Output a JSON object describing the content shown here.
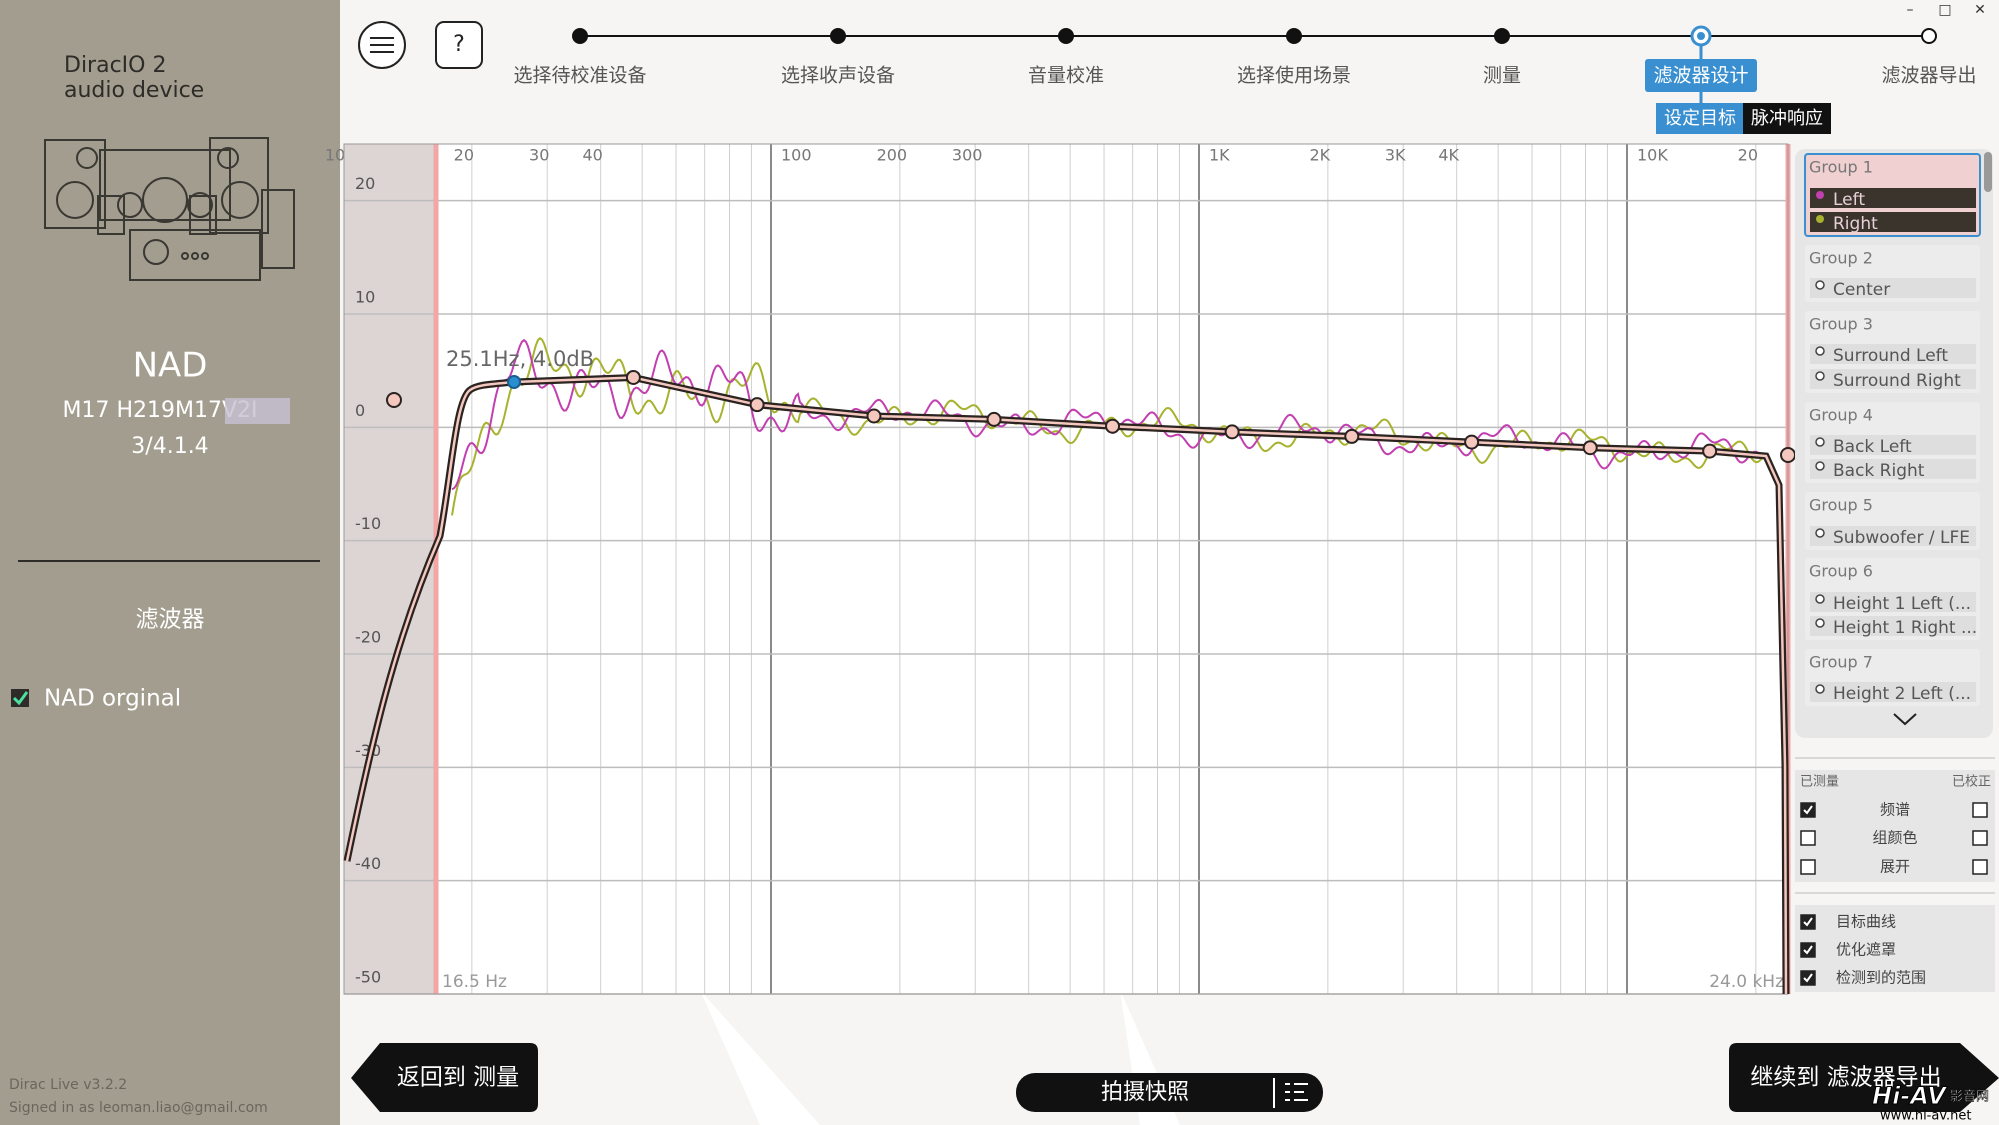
{
  "window_controls": [
    "–",
    "□",
    "✕"
  ],
  "sidebar": {
    "device": [
      "DiracIO 2",
      "audio device"
    ],
    "name": "NAD",
    "model": "M17 H219M17V2I",
    "config": "3/4.1.4",
    "section": "滤波器",
    "filter": "NAD orginal",
    "version": "Dirac Live v3.2.2",
    "signed_in": "Signed in as leoman.liao@gmail.com"
  },
  "toolbar": {
    "help": "?"
  },
  "steps": [
    "选择待校准设备",
    "选择收声设备",
    "音量校准",
    "选择使用场景",
    "测量",
    "滤波器设计",
    "滤波器导出"
  ],
  "active_step": 5,
  "tabs": [
    "设定目标",
    "脉冲响应"
  ],
  "plot": {
    "xlim": [
      10,
      24000
    ],
    "ylim": [
      -50,
      25
    ],
    "xticks": [
      10,
      20,
      30,
      40,
      100,
      200,
      300,
      {
        "value": 1000,
        "label": "1K"
      },
      {
        "value": 2000,
        "label": "2K"
      },
      {
        "value": 3000,
        "label": "3K"
      },
      {
        "value": 4000,
        "label": "4K"
      },
      {
        "value": 10000,
        "label": "10K"
      },
      {
        "value": 20000,
        "label": "20"
      }
    ],
    "xgrid": [
      20,
      30,
      40,
      50,
      60,
      70,
      80,
      90,
      100,
      200,
      300,
      400,
      500,
      600,
      700,
      800,
      900,
      1000,
      2000,
      3000,
      4000,
      5000,
      6000,
      7000,
      8000,
      9000,
      10000,
      20000
    ],
    "xmajor": [
      100,
      1000,
      10000
    ],
    "yticks": [
      20,
      10,
      0,
      -10,
      -20,
      -30,
      -40,
      -50
    ],
    "log_x": true,
    "range_labels": [
      "16.5 Hz",
      "24.0 kHz"
    ],
    "cursor_label": "25.1Hz, 4.0dB",
    "target": {
      "freq": [
        25.1,
        47.7,
        92.8,
        174,
        332,
        628,
        1195,
        2275,
        4335,
        8205,
        15600
      ],
      "db": [
        4.0,
        4.4,
        2.0,
        1.0,
        0.7,
        0.1,
        -0.4,
        -0.8,
        -1.3,
        -1.8,
        -2.1
      ],
      "selected": 0
    },
    "series_colors": {
      "left": "#c23fb0",
      "right": "#a7b22e"
    }
  },
  "groups": [
    {
      "name": "Group 1",
      "channels": [
        "Left",
        "Right"
      ]
    },
    {
      "name": "Group 2",
      "channels": [
        "Center"
      ]
    },
    {
      "name": "Group 3",
      "channels": [
        "Surround Left",
        "Surround Right"
      ]
    },
    {
      "name": "Group 4",
      "channels": [
        "Back Left",
        "Back Right"
      ]
    },
    {
      "name": "Group 5",
      "channels": [
        "Subwoofer / LFE"
      ]
    },
    {
      "name": "Group 6",
      "channels": [
        "Height 1 Left (...",
        "Height 1 Right ..."
      ]
    },
    {
      "name": "Group 7",
      "channels": [
        "Height 2 Left (..."
      ]
    }
  ],
  "options": {
    "headers": [
      "已测量",
      "已校正"
    ],
    "rows": [
      {
        "label": "频谱",
        "measured": true,
        "corrected": false
      },
      {
        "label": "组颜色",
        "measured": false,
        "corrected": false
      },
      {
        "label": "展开",
        "measured": false,
        "corrected": false
      }
    ],
    "toggles": [
      {
        "label": "目标曲线",
        "checked": true
      },
      {
        "label": "优化遮罩",
        "checked": true
      },
      {
        "label": "检测到的范围",
        "checked": true
      }
    ]
  },
  "buttons": {
    "back": "返回到 测量",
    "snapshot": "拍摄快照",
    "next": "继续到 滤波器导出"
  },
  "watermark": [
    "Hi-AV",
    "影音网",
    "www.hi-av.net"
  ]
}
